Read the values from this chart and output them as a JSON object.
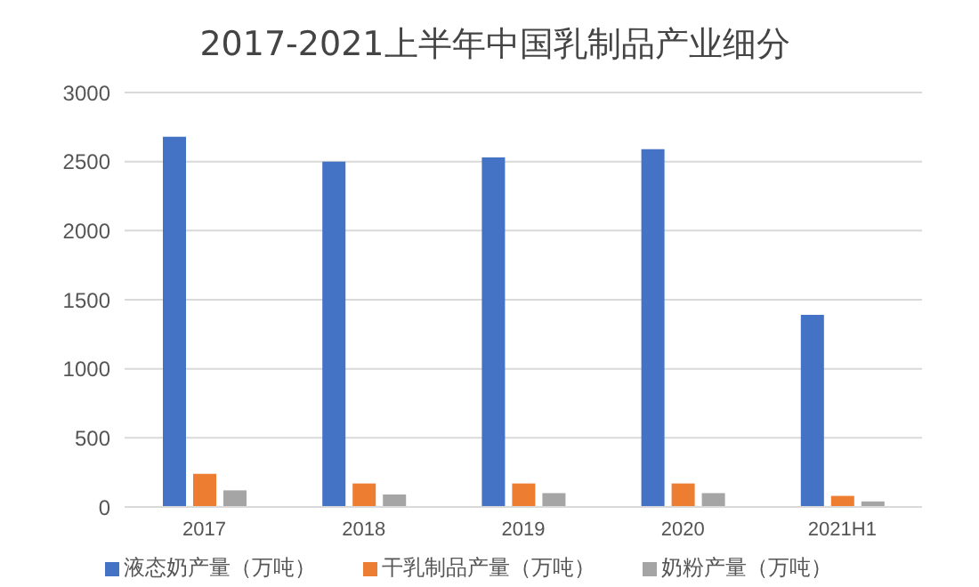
{
  "chart_data": {
    "type": "bar",
    "title": "2017-2021上半年中国乳制品产业细分",
    "categories": [
      "2017",
      "2018",
      "2019",
      "2020",
      "2021H1"
    ],
    "series": [
      {
        "name": "液态奶产量（万吨）",
        "color": "#4472c4",
        "values": [
          2680,
          2500,
          2530,
          2590,
          1390
        ]
      },
      {
        "name": "干乳制品产量（万吨）",
        "color": "#ed7d31",
        "values": [
          240,
          170,
          170,
          170,
          80
        ]
      },
      {
        "name": "奶粉产量（万吨）",
        "color": "#a5a5a5",
        "values": [
          120,
          90,
          100,
          100,
          40
        ]
      }
    ],
    "ylim": [
      0,
      3000
    ],
    "yticks": [
      0,
      500,
      1000,
      1500,
      2000,
      2500,
      3000
    ],
    "grid": "y",
    "legend": "bottom"
  }
}
